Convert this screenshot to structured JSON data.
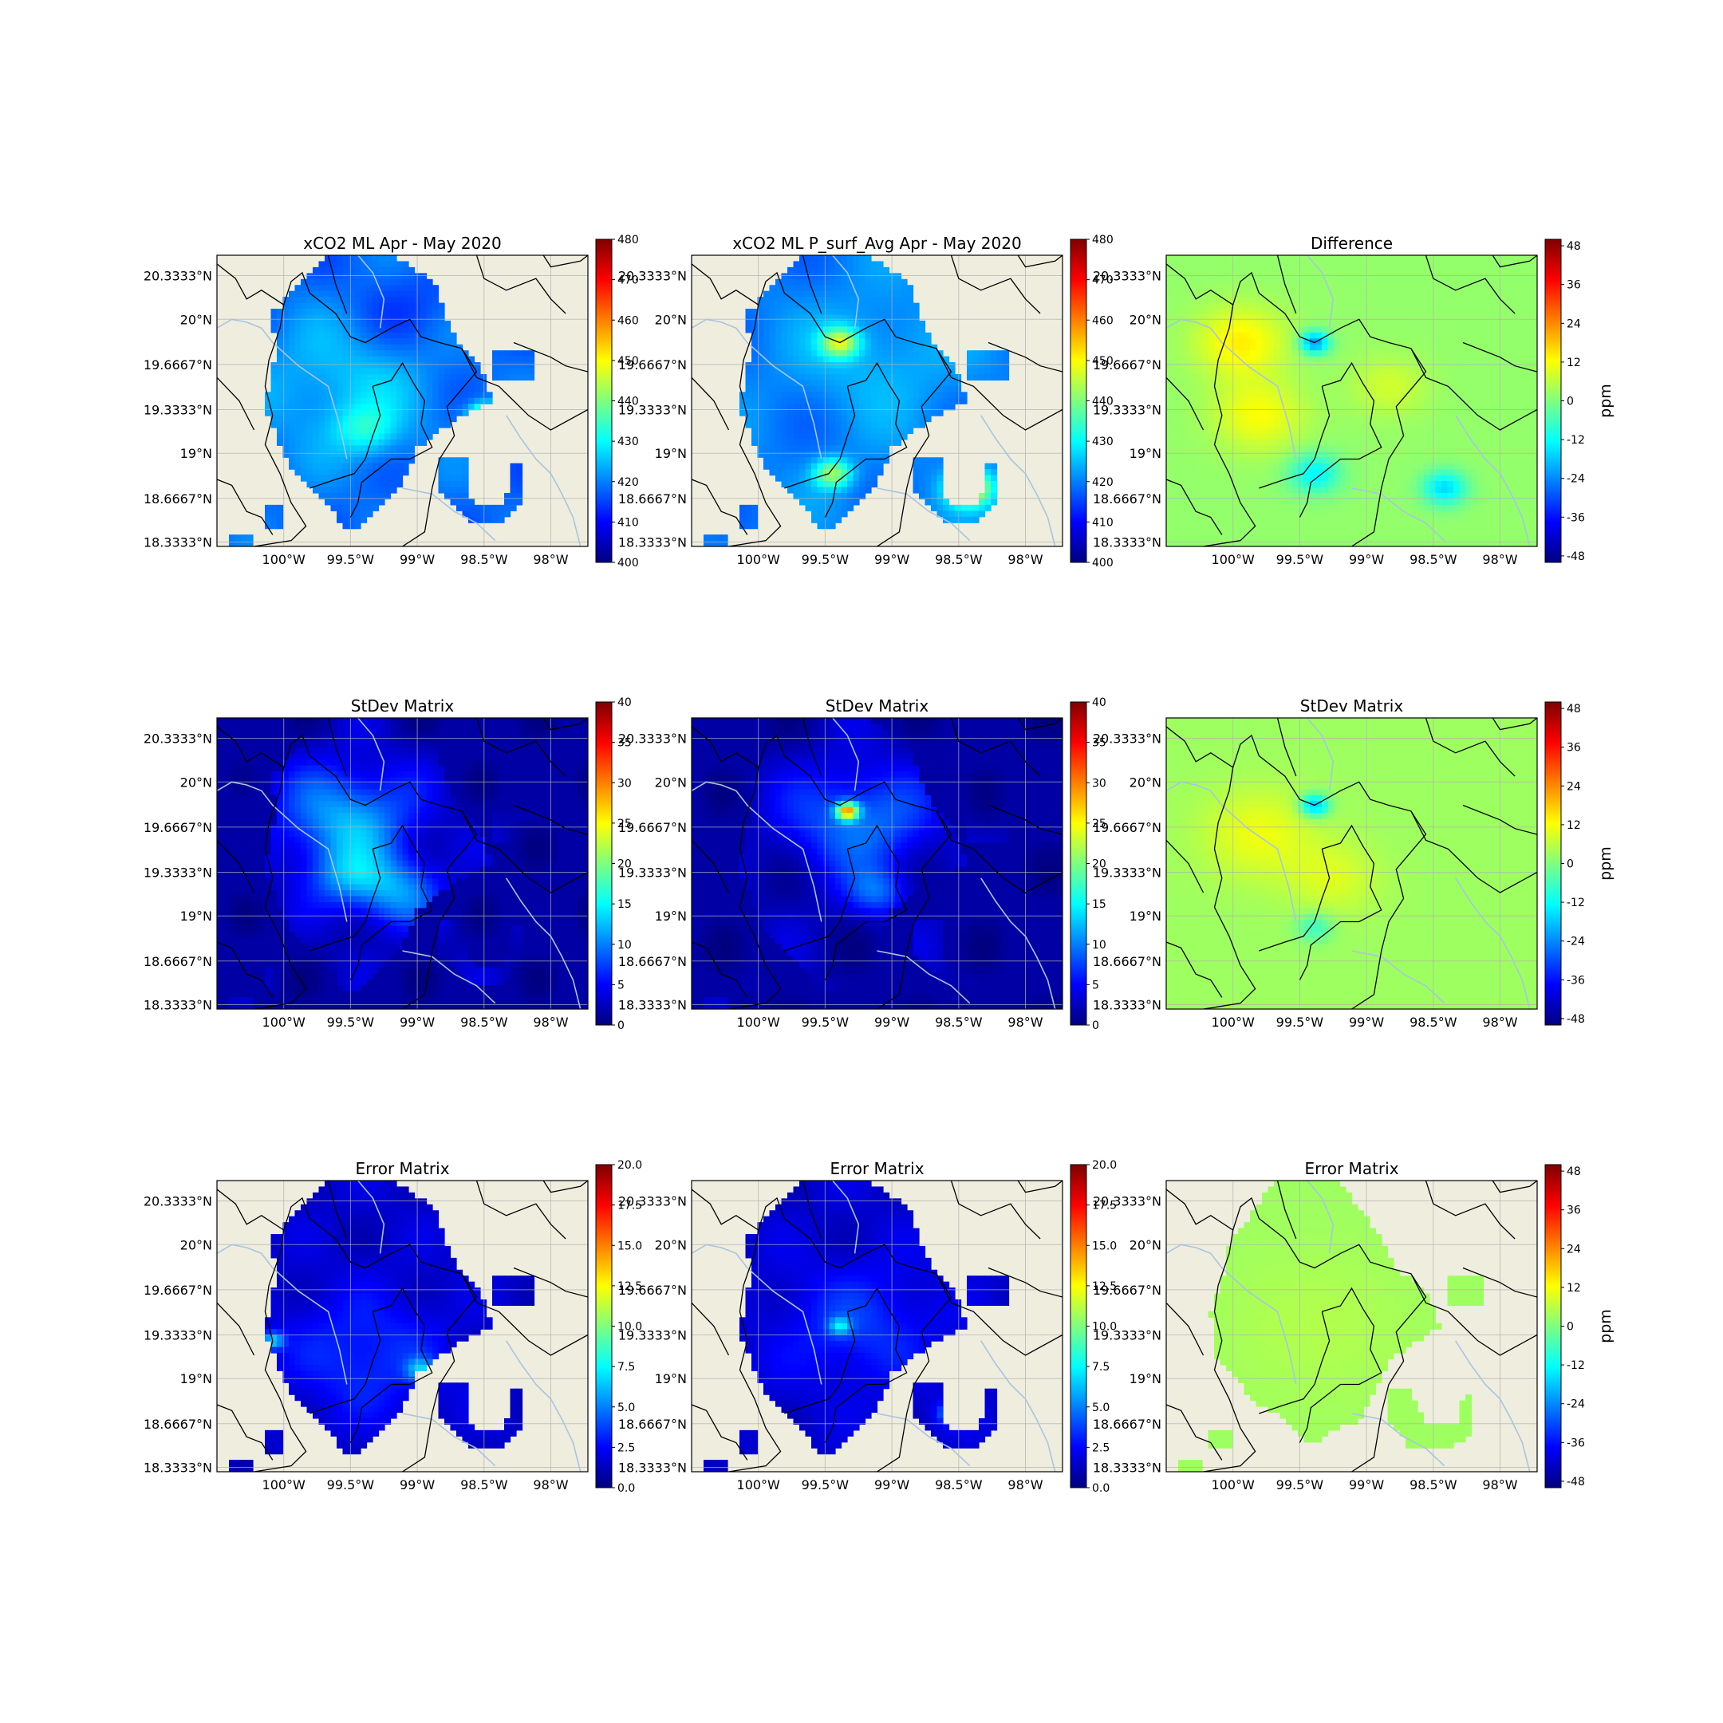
{
  "figure": {
    "lon_ticks": [
      "100°W",
      "99.5°W",
      "99°W",
      "98.5°W",
      "98°W"
    ],
    "lat_ticks": [
      "20.3333°N",
      "20°N",
      "19.6667°N",
      "19.3333°N",
      "19°N",
      "18.6667°N",
      "18.3333°N"
    ]
  },
  "colors": {
    "land": "#efedde",
    "jet": [
      "#00007f",
      "#0000ff",
      "#007fff",
      "#00ffff",
      "#7fff7f",
      "#ffff00",
      "#ff7f00",
      "#ff0000",
      "#7f0000"
    ],
    "border": "#000000",
    "river": "#a9c4e0",
    "grid": "#b0b0b0"
  },
  "chart_data": [
    {
      "type": "heatmap",
      "title": "xCO2 ML Apr - May 2020",
      "field": "xco2",
      "mask": "obs",
      "cb_ticks": [
        "400",
        "410",
        "420",
        "430",
        "440",
        "450",
        "460",
        "470",
        "480"
      ],
      "cb_range": [
        400,
        480
      ],
      "cb_unit": "",
      "lon_range": [
        -100.5,
        -97.7
      ],
      "lat_range": [
        18.3,
        20.5
      ]
    },
    {
      "type": "heatmap",
      "title": "xCO2 ML P_surf_Avg Apr - May 2020",
      "field": "xco2p",
      "mask": "obs",
      "cb_ticks": [
        "400",
        "410",
        "420",
        "430",
        "440",
        "450",
        "460",
        "470",
        "480"
      ],
      "cb_range": [
        400,
        480
      ],
      "cb_unit": "",
      "lon_range": [
        -100.5,
        -97.7
      ],
      "lat_range": [
        18.3,
        20.5
      ]
    },
    {
      "type": "heatmap",
      "title": "Difference",
      "field": "diff",
      "mask": "full",
      "cb_ticks": [
        "48",
        "36",
        "24",
        "12",
        "0",
        "-12",
        "-24",
        "-36",
        "-48"
      ],
      "cb_range": [
        -50,
        50
      ],
      "cb_unit": "ppm",
      "lon_range": [
        -100.5,
        -97.7
      ],
      "lat_range": [
        18.3,
        20.5
      ]
    },
    {
      "type": "heatmap",
      "title": "StDev Matrix",
      "field": "sd1",
      "mask": "full",
      "cb_ticks": [
        "0",
        "5",
        "10",
        "15",
        "20",
        "25",
        "30",
        "35",
        "40"
      ],
      "cb_range": [
        0,
        40
      ],
      "cb_unit": "",
      "lon_range": [
        -100.5,
        -97.7
      ],
      "lat_range": [
        18.3,
        20.5
      ]
    },
    {
      "type": "heatmap",
      "title": "StDev Matrix",
      "field": "sd2",
      "mask": "full",
      "cb_ticks": [
        "0",
        "5",
        "10",
        "15",
        "20",
        "25",
        "30",
        "35",
        "40"
      ],
      "cb_range": [
        0,
        40
      ],
      "cb_unit": "",
      "lon_range": [
        -100.5,
        -97.7
      ],
      "lat_range": [
        18.3,
        20.5
      ]
    },
    {
      "type": "heatmap",
      "title": "StDev Matrix",
      "field": "sdd",
      "mask": "full",
      "cb_ticks": [
        "48",
        "36",
        "24",
        "12",
        "0",
        "-12",
        "-24",
        "-36",
        "-48"
      ],
      "cb_range": [
        -50,
        50
      ],
      "cb_unit": "ppm",
      "lon_range": [
        -100.5,
        -97.7
      ],
      "lat_range": [
        18.3,
        20.5
      ]
    },
    {
      "type": "heatmap",
      "title": "Error Matrix",
      "field": "err1",
      "mask": "obs",
      "cb_ticks": [
        "0.0",
        "2.5",
        "5.0",
        "7.5",
        "10.0",
        "12.5",
        "15.0",
        "17.5",
        "20.0"
      ],
      "cb_range": [
        0,
        20
      ],
      "cb_unit": "",
      "lon_range": [
        -100.5,
        -97.7
      ],
      "lat_range": [
        18.3,
        20.5
      ]
    },
    {
      "type": "heatmap",
      "title": "Error Matrix",
      "field": "err2",
      "mask": "obs",
      "cb_ticks": [
        "0.0",
        "2.5",
        "5.0",
        "7.5",
        "10.0",
        "12.5",
        "15.0",
        "17.5",
        "20.0"
      ],
      "cb_range": [
        0,
        20
      ],
      "cb_unit": "",
      "lon_range": [
        -100.5,
        -97.7
      ],
      "lat_range": [
        18.3,
        20.5
      ]
    },
    {
      "type": "heatmap",
      "title": "Error Matrix",
      "field": "errd",
      "mask": "obs2",
      "cb_ticks": [
        "48",
        "36",
        "24",
        "12",
        "0",
        "-12",
        "-24",
        "-36",
        "-48"
      ],
      "cb_range": [
        -50,
        50
      ],
      "cb_unit": "ppm",
      "lon_range": [
        -100.5,
        -97.7
      ],
      "lat_range": [
        18.3,
        20.5
      ]
    }
  ]
}
